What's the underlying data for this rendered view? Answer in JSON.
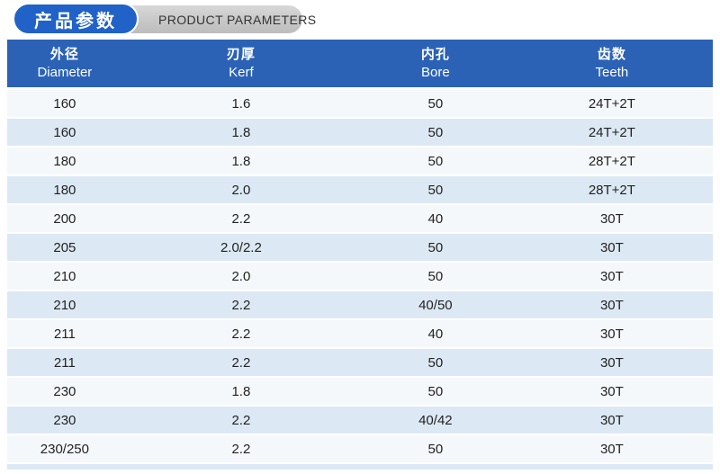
{
  "title": {
    "zh": "产品参数",
    "en": "PRODUCT PARAMETERS"
  },
  "colors": {
    "accent_blue": "#2b62b6",
    "pill_blue": "#2062c8",
    "pill_gray": "#c9c9c9",
    "row_light": "#f5f8fb",
    "row_tint": "#dce9f4",
    "row_text": "#222222"
  },
  "table": {
    "columns": [
      {
        "zh": "外径",
        "en": "Diameter"
      },
      {
        "zh": "刃厚",
        "en": "Kerf"
      },
      {
        "zh": "内孔",
        "en": "Bore"
      },
      {
        "zh": "齿数",
        "en": "Teeth"
      }
    ],
    "rows": [
      [
        "160",
        "1.6",
        "50",
        "24T+2T"
      ],
      [
        "160",
        "1.8",
        "50",
        "24T+2T"
      ],
      [
        "180",
        "1.8",
        "50",
        "28T+2T"
      ],
      [
        "180",
        "2.0",
        "50",
        "28T+2T"
      ],
      [
        "200",
        "2.2",
        "40",
        "30T"
      ],
      [
        "205",
        "2.0/2.2",
        "50",
        "30T"
      ],
      [
        "210",
        "2.0",
        "50",
        "30T"
      ],
      [
        "210",
        "2.2",
        "40/50",
        "30T"
      ],
      [
        "211",
        "2.2",
        "40",
        "30T"
      ],
      [
        "211",
        "2.2",
        "50",
        "30T"
      ],
      [
        "230",
        "1.8",
        "50",
        "30T"
      ],
      [
        "230",
        "2.2",
        "40/42",
        "30T"
      ],
      [
        "230/250",
        "2.2",
        "50",
        "30T"
      ]
    ]
  }
}
